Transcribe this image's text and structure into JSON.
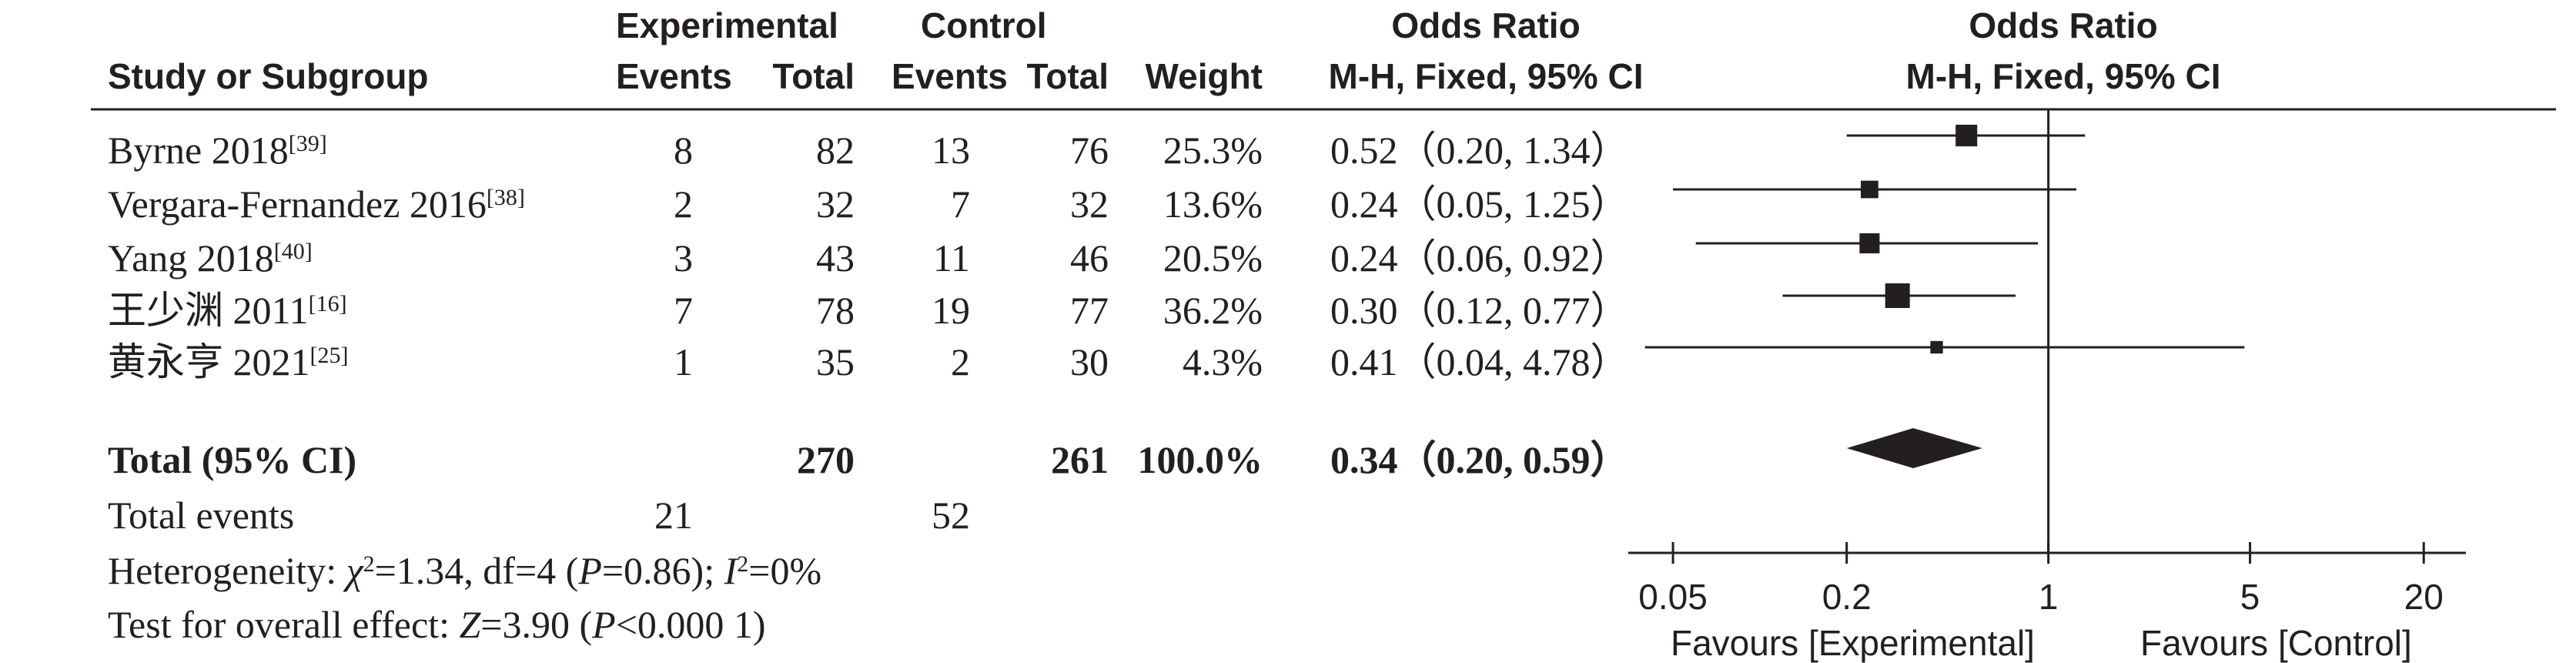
{
  "headers": {
    "study_col": "Study or Subgroup",
    "experimental_group": "Experimental",
    "control_group": "Control",
    "events": "Events",
    "total": "Total",
    "weight": "Weight",
    "or_title": "Odds Ratio",
    "or_method": "M-H, Fixed, 95% CI",
    "plot_title": "Odds Ratio",
    "plot_method": "M-H, Fixed, 95% CI"
  },
  "rows": [
    {
      "study": "Byrne 2018",
      "ref": "[39]",
      "exp_events": "8",
      "exp_total": "82",
      "ctl_events": "13",
      "ctl_total": "76",
      "weight": "25.3%",
      "ci_text": "0.52（0.20, 1.34）"
    },
    {
      "study": "Vergara-Fernandez 2016",
      "ref": "[38]",
      "exp_events": "2",
      "exp_total": "32",
      "ctl_events": "7",
      "ctl_total": "32",
      "weight": "13.6%",
      "ci_text": "0.24（0.05, 1.25）"
    },
    {
      "study": "Yang 2018",
      "ref": "[40]",
      "exp_events": "3",
      "exp_total": "43",
      "ctl_events": "11",
      "ctl_total": "46",
      "weight": "20.5%",
      "ci_text": "0.24（0.06, 0.92）"
    },
    {
      "study": "王少渊 2011",
      "ref": "[16]",
      "exp_events": "7",
      "exp_total": "78",
      "ctl_events": "19",
      "ctl_total": "77",
      "weight": "36.2%",
      "ci_text": "0.30（0.12, 0.77）"
    },
    {
      "study": "黄永亨 2021",
      "ref": "[25]",
      "exp_events": "1",
      "exp_total": "35",
      "ctl_events": "2",
      "ctl_total": "30",
      "weight": "4.3%",
      "ci_text": "0.41（0.04, 4.78）"
    }
  ],
  "total_row": {
    "label": "Total (95% CI)",
    "exp_total": "270",
    "ctl_total": "261",
    "weight": "100.0%",
    "ci_text": "0.34（0.20, 0.59）"
  },
  "total_events": {
    "label": "Total events",
    "exp": "21",
    "ctl": "52"
  },
  "heterogeneity": {
    "label": "Heterogeneity: ",
    "chi_symbol": "χ",
    "chi_sup": "2",
    "chi_value": "=1.34, df=4 (",
    "p_symbol": "P",
    "p_value": "=0.86); ",
    "i_symbol": "I",
    "i_sup": "2",
    "i_value": "=0%"
  },
  "overall_effect": {
    "label": "Test for overall effect: ",
    "z_symbol": "Z",
    "z_value": "=3.90 (",
    "p_symbol": "P",
    "p_value": "<0.000 1)"
  },
  "axis": {
    "tick_labels": [
      "0.05",
      "0.2",
      "1",
      "5",
      "20"
    ],
    "favours_left": "Favours [Experimental]",
    "favours_right": "Favours [Control]"
  },
  "chart_data": {
    "type": "scatter",
    "title": "",
    "x_scale": "log",
    "xlim": [
      0.035,
      28
    ],
    "x_ticks": [
      0.05,
      0.2,
      1,
      5,
      20
    ],
    "reference_line": 1,
    "studies": [
      {
        "name": "Byrne 2018",
        "or": 0.52,
        "lower": 0.2,
        "upper": 1.34,
        "weight": 25.3
      },
      {
        "name": "Vergara-Fernandez 2016",
        "or": 0.24,
        "lower": 0.05,
        "upper": 1.25,
        "weight": 13.6
      },
      {
        "name": "Yang 2018",
        "or": 0.24,
        "lower": 0.06,
        "upper": 0.92,
        "weight": 20.5
      },
      {
        "name": "王少渊 2011",
        "or": 0.3,
        "lower": 0.12,
        "upper": 0.77,
        "weight": 36.2
      },
      {
        "name": "黄永亨 2021",
        "or": 0.41,
        "lower": 0.04,
        "upper": 4.78,
        "weight": 4.3
      }
    ],
    "pooled": {
      "name": "Total (95% CI)",
      "or": 0.34,
      "lower": 0.2,
      "upper": 0.59
    },
    "colors": {
      "ink": "#231f20"
    }
  }
}
